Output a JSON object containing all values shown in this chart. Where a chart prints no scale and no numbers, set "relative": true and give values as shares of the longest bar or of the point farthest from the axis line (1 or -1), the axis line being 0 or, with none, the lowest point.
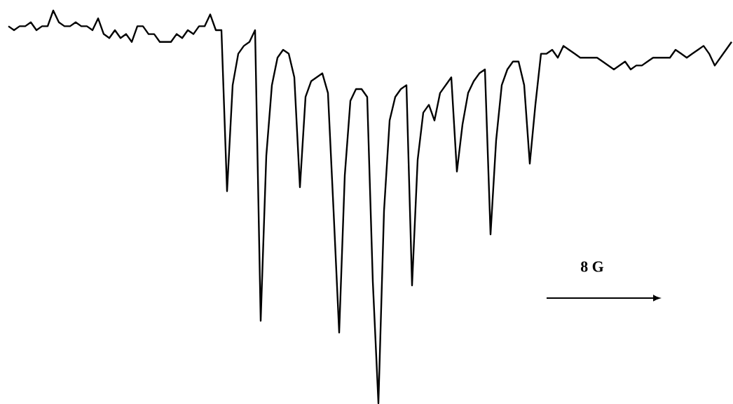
{
  "chart_data": {
    "type": "line",
    "relative": true,
    "color": "#000000",
    "annotations": [
      "8 G"
    ],
    "categories": [
      null,
      null,
      null,
      null,
      null,
      null,
      null,
      null,
      null,
      null,
      null,
      null,
      null,
      null,
      null,
      null,
      null,
      null,
      null,
      null,
      null,
      null,
      null,
      null,
      null,
      null,
      null,
      null,
      null,
      null,
      null,
      null,
      null,
      null,
      null,
      null,
      null,
      null,
      null,
      null,
      null,
      null,
      null,
      null,
      null,
      null,
      null,
      null,
      null,
      null,
      null,
      null,
      null,
      null,
      null,
      null,
      null,
      null,
      null,
      null,
      null,
      null,
      null,
      null,
      null,
      null,
      null,
      null,
      null,
      null,
      null,
      null,
      null,
      null,
      null,
      null,
      null,
      null,
      null,
      null,
      null,
      null,
      null,
      null,
      null,
      null,
      null,
      null,
      null,
      null,
      null,
      null,
      null,
      null,
      null,
      null,
      null,
      null,
      null,
      null,
      null,
      null,
      null,
      null,
      null,
      null,
      null,
      null,
      null,
      null,
      null,
      null,
      null,
      null,
      null,
      null,
      null,
      null,
      null,
      null,
      null,
      null,
      null,
      null,
      null,
      null,
      null,
      null,
      null,
      null
    ],
    "values": [
      0.96,
      0.95,
      0.96,
      0.96,
      0.97,
      0.95,
      0.96,
      0.96,
      1.0,
      0.97,
      0.96,
      0.96,
      0.97,
      0.96,
      0.96,
      0.95,
      0.98,
      0.94,
      0.93,
      0.95,
      0.93,
      0.94,
      0.92,
      0.96,
      0.96,
      0.94,
      0.94,
      0.92,
      0.92,
      0.92,
      0.94,
      0.93,
      0.95,
      0.94,
      0.96,
      0.96,
      0.99,
      0.95,
      0.95,
      0.54,
      0.81,
      0.89,
      0.91,
      0.92,
      0.95,
      0.21,
      0.63,
      0.81,
      0.88,
      0.9,
      0.89,
      0.83,
      0.55,
      0.78,
      0.82,
      0.83,
      0.84,
      0.79,
      0.49,
      0.18,
      0.58,
      0.77,
      0.8,
      0.8,
      0.78,
      0.31,
      0.0,
      0.49,
      0.72,
      0.78,
      0.8,
      0.81,
      0.3,
      0.62,
      0.74,
      0.76,
      0.72,
      0.79,
      0.81,
      0.83,
      0.59,
      0.71,
      0.79,
      0.82,
      0.84,
      0.85,
      0.43,
      0.67,
      0.81,
      0.85,
      0.87,
      0.87,
      0.81,
      0.61,
      0.76,
      0.89,
      0.89,
      0.9,
      0.88,
      0.91,
      0.9,
      0.89,
      0.88,
      0.88,
      0.88,
      0.88,
      0.87,
      0.86,
      0.85,
      0.86,
      0.87,
      0.85,
      0.86,
      0.86,
      0.87,
      0.88,
      0.88,
      0.88,
      0.88,
      0.9,
      0.89,
      0.88,
      0.89,
      0.9,
      0.91,
      0.89,
      0.86,
      0.88,
      0.9,
      0.92
    ]
  }
}
